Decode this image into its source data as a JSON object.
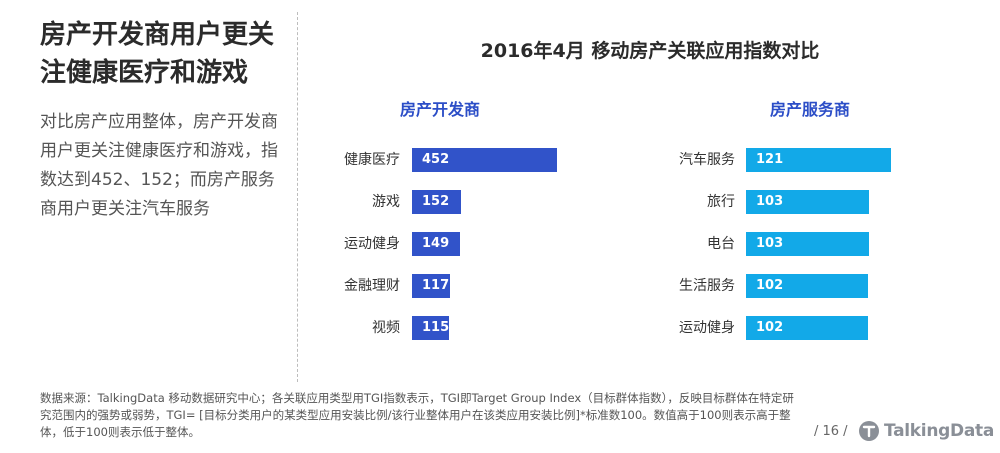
{
  "left": {
    "title": "房产开发商用户更关注健康医疗和游戏",
    "body": "对比房产应用整体，房产开发商用户更关注健康医疗和游戏，指数达到452、152；而房产服务商用户更关注汽车服务"
  },
  "chart_data": {
    "type": "bar",
    "title": "2016年4月 移动房产关联应用指数对比",
    "groups": [
      {
        "name": "房产开发商",
        "color": "#3153c9",
        "categories": [
          "健康医疗",
          "游戏",
          "运动健身",
          "金融理财",
          "视频"
        ],
        "values": [
          452,
          152,
          149,
          117,
          115
        ]
      },
      {
        "name": "房产服务商",
        "color": "#12a9e8",
        "categories": [
          "汽车服务",
          "旅行",
          "电台",
          "生活服务",
          "运动健身"
        ],
        "values": [
          121,
          103,
          103,
          102,
          102
        ]
      }
    ]
  },
  "footnote": "数据来源：TalkingData 移动数据研究中心；各关联应用类型用TGI指数表示，TGI即Target Group Index（目标群体指数），反映目标群体在特定研究范围内的强势或弱势，TGI= [目标分类用户的某类型应用安装比例/该行业整体用户在该类应用安装比例]*标准数100。数值高于100则表示高于整体，低于100则表示低于整体。",
  "page": "/ 16 /",
  "logo_text": "TalkingData"
}
